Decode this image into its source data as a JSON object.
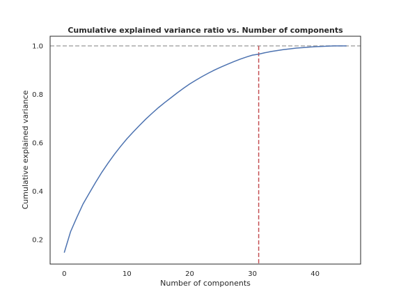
{
  "chart_data": {
    "type": "line",
    "title": "Cumulative explained variance ratio vs. Number of components",
    "xlabel": "Number of components",
    "ylabel": "Cumulative explained variance",
    "xlim": [
      -2.25,
      47.25
    ],
    "ylim": [
      0.1,
      1.04
    ],
    "xticks": [
      0,
      10,
      20,
      30,
      40
    ],
    "yticks": [
      0.2,
      0.4,
      0.6,
      0.8,
      1.0
    ],
    "ytick_labels": [
      "0.2",
      "0.4",
      "0.6",
      "0.8",
      "1.0"
    ],
    "grid": false,
    "series": [
      {
        "color": "#4c72b0",
        "x": [
          0,
          1,
          2,
          3,
          4,
          5,
          6,
          7,
          8,
          9,
          10,
          11,
          12,
          13,
          14,
          15,
          16,
          17,
          18,
          19,
          20,
          21,
          22,
          23,
          24,
          25,
          26,
          27,
          28,
          29,
          30,
          31,
          32,
          33,
          34,
          35,
          36,
          37,
          38,
          39,
          40,
          41,
          42,
          43,
          44,
          45
        ],
        "y": [
          0.147,
          0.233,
          0.292,
          0.348,
          0.393,
          0.437,
          0.479,
          0.517,
          0.553,
          0.586,
          0.617,
          0.645,
          0.672,
          0.698,
          0.722,
          0.745,
          0.766,
          0.786,
          0.806,
          0.825,
          0.843,
          0.859,
          0.874,
          0.888,
          0.901,
          0.913,
          0.924,
          0.935,
          0.945,
          0.954,
          0.962,
          0.966,
          0.972,
          0.977,
          0.981,
          0.985,
          0.988,
          0.991,
          0.993,
          0.995,
          0.997,
          0.998,
          0.999,
          1.0,
          1.0,
          1.0
        ]
      }
    ],
    "reference_lines": [
      {
        "orientation": "horizontal",
        "value": 1.0,
        "color": "#aaaaaa",
        "style": "dashed"
      },
      {
        "orientation": "vertical",
        "value": 31,
        "color": "#c44e52",
        "style": "dashed"
      }
    ]
  }
}
